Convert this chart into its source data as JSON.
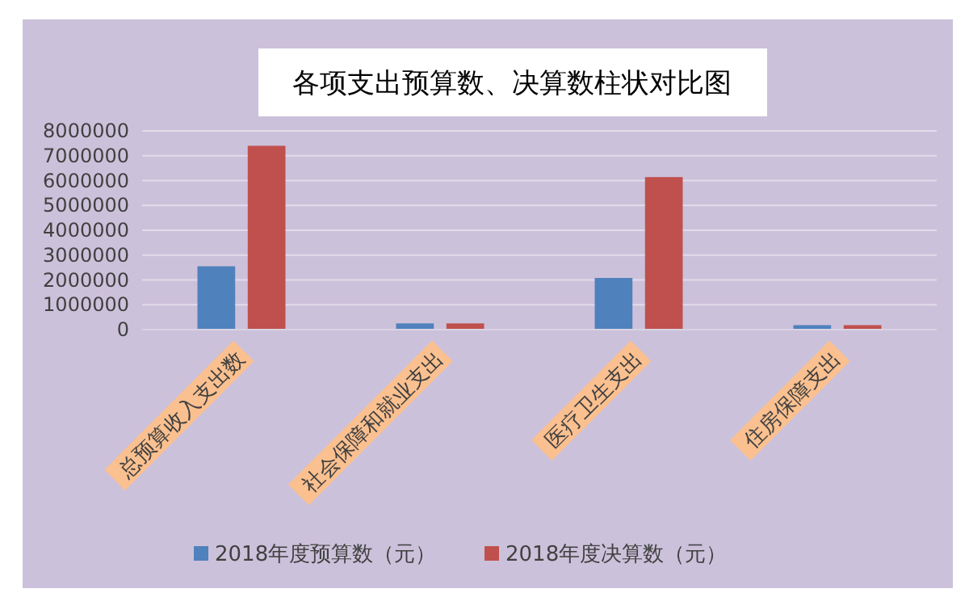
{
  "chart_data": {
    "type": "bar",
    "title": "各项支出预算数、决算数柱状对比图",
    "categories": [
      "总预算收入支出数",
      "社会保障和就业支出",
      "医疗卫生支出",
      "住房保障支出"
    ],
    "series": [
      {
        "name": "2018年度预算数（元）",
        "color": "#4f81bd",
        "values": [
          2550000,
          250000,
          2080000,
          180000
        ]
      },
      {
        "name": "2018年度决算数（元）",
        "color": "#c0504d",
        "values": [
          7400000,
          250000,
          6140000,
          180000
        ]
      }
    ],
    "ylim": [
      0,
      8000000
    ],
    "yticks": [
      0,
      1000000,
      2000000,
      3000000,
      4000000,
      5000000,
      6000000,
      7000000,
      8000000
    ],
    "grid": "y",
    "legend": "bottom"
  }
}
